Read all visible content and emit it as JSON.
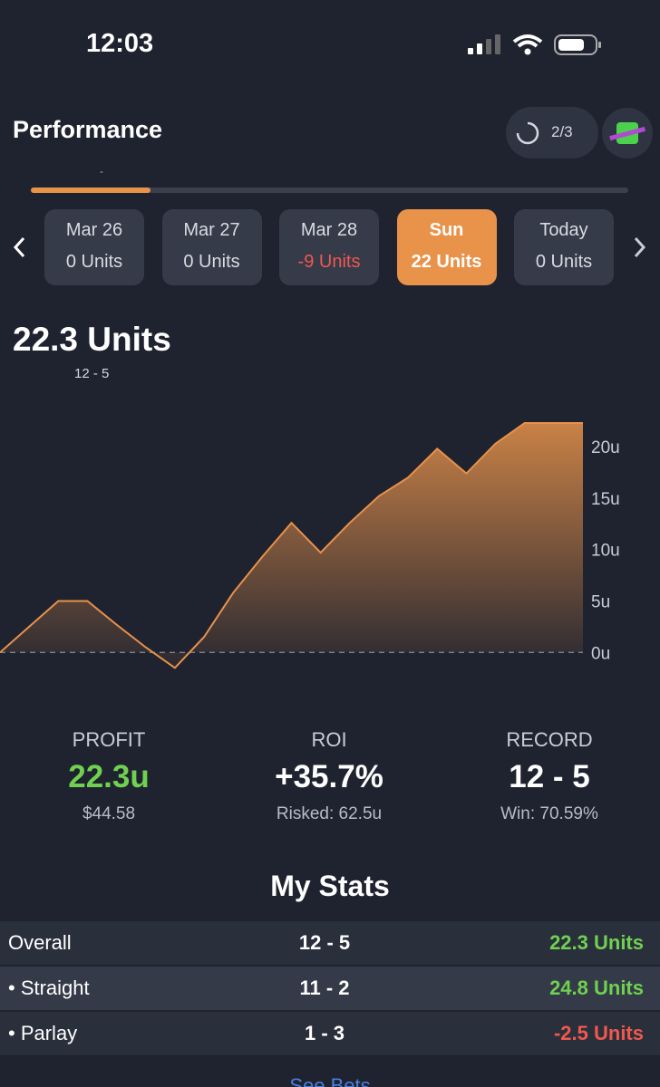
{
  "status_bar": {
    "time": "12:03"
  },
  "header": {
    "title": "Performance",
    "progress": "2/3",
    "tab_marker": "-"
  },
  "days": [
    {
      "label": "Mar 26",
      "units": "0 Units",
      "tone": "neutral"
    },
    {
      "label": "Mar 27",
      "units": "0 Units",
      "tone": "neutral"
    },
    {
      "label": "Mar 28",
      "units": "-9 Units",
      "tone": "negative"
    },
    {
      "label": "Sun",
      "units": "22 Units",
      "tone": "neutral",
      "selected": true
    },
    {
      "label": "Today",
      "units": "0 Units",
      "tone": "neutral"
    }
  ],
  "summary": {
    "total": "22.3 Units",
    "record": "12 - 5"
  },
  "chart": {
    "type": "area",
    "color": "#e8924a",
    "values": [
      0,
      2.5,
      5,
      5,
      2.7,
      0.5,
      -1.5,
      1.5,
      5.8,
      9.3,
      12.6,
      9.7,
      12.6,
      15.2,
      17,
      19.8,
      17.4,
      20.3,
      22.3,
      22.3,
      22.3
    ],
    "ylim": [
      -2,
      22.3
    ],
    "yticks": [
      {
        "value": 0,
        "label": "0u"
      },
      {
        "value": 5,
        "label": "5u"
      },
      {
        "value": 10,
        "label": "10u"
      },
      {
        "value": 15,
        "label": "15u"
      },
      {
        "value": 20,
        "label": "20u"
      }
    ]
  },
  "stats": [
    {
      "label": "PROFIT",
      "value": "22.3u",
      "sub": "$44.58",
      "tone": "positive"
    },
    {
      "label": "ROI",
      "value": "+35.7%",
      "sub": "Risked: 62.5u",
      "tone": "neutral"
    },
    {
      "label": "RECORD",
      "value": "12 - 5",
      "sub": "Win: 70.59%",
      "tone": "neutral"
    }
  ],
  "my_stats": {
    "title": "My Stats",
    "rows": [
      {
        "label": "Overall",
        "record": "12 - 5",
        "units": "22.3 Units",
        "tone": "positive"
      },
      {
        "label": "• Straight",
        "record": "11 - 2",
        "units": "24.8 Units",
        "tone": "positive"
      },
      {
        "label": "• Parlay",
        "record": "1 - 3",
        "units": "-2.5 Units",
        "tone": "negative"
      }
    ],
    "link": "See Bets"
  }
}
